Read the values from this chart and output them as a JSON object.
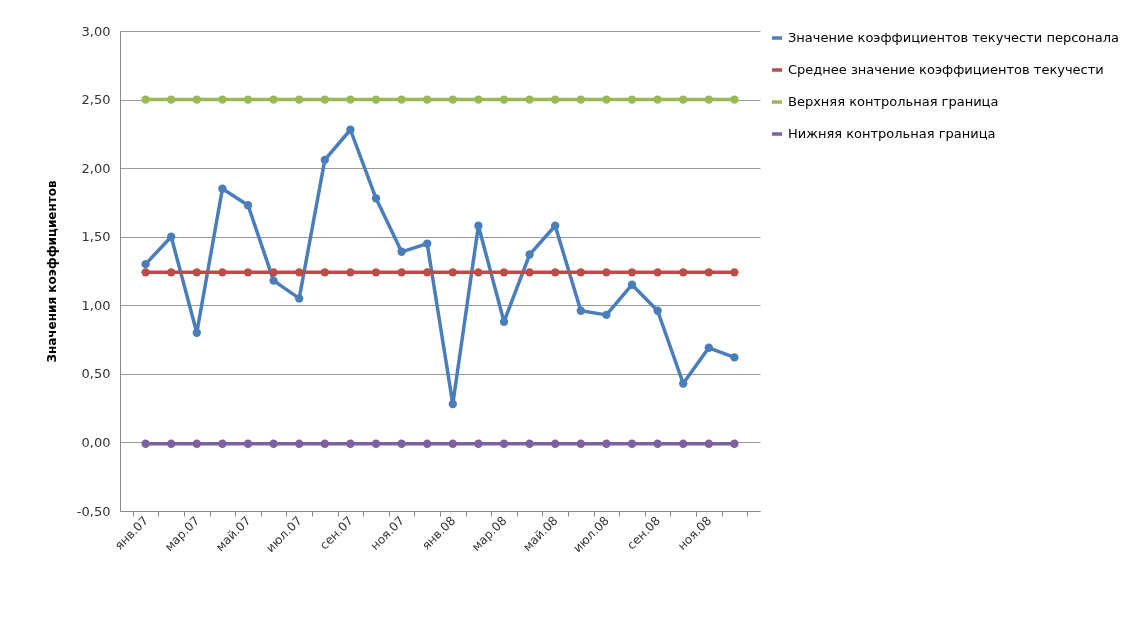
{
  "chart_data": {
    "type": "line",
    "ylabel": "Значения коэффициентов",
    "categories": [
      "янв.07",
      null,
      "мар.07",
      null,
      "май.07",
      null,
      "июл.07",
      null,
      "сен.07",
      null,
      "ноя.07",
      null,
      "янв.08",
      null,
      "мар.08",
      null,
      "май.08",
      null,
      "июл.08",
      null,
      "сен.08",
      null,
      "ноя.08",
      null
    ],
    "series": [
      {
        "name": "Значение коэффициентов текучести персонала",
        "color": "#4a7ebb",
        "values": [
          1.3,
          1.5,
          0.8,
          1.85,
          1.73,
          1.18,
          1.05,
          2.06,
          2.28,
          1.78,
          1.39,
          1.45,
          0.28,
          1.58,
          0.88,
          1.37,
          1.58,
          0.96,
          0.93,
          1.15,
          0.96,
          0.43,
          0.69,
          0.62
        ]
      },
      {
        "name": "Среднее значение коэффициентов текучести",
        "color": "#be4b48",
        "values": [
          1.24,
          1.24,
          1.24,
          1.24,
          1.24,
          1.24,
          1.24,
          1.24,
          1.24,
          1.24,
          1.24,
          1.24,
          1.24,
          1.24,
          1.24,
          1.24,
          1.24,
          1.24,
          1.24,
          1.24,
          1.24,
          1.24,
          1.24,
          1.24
        ]
      },
      {
        "name": "Верхняя контрольная граница",
        "color": "#98b954",
        "values": [
          2.5,
          2.5,
          2.5,
          2.5,
          2.5,
          2.5,
          2.5,
          2.5,
          2.5,
          2.5,
          2.5,
          2.5,
          2.5,
          2.5,
          2.5,
          2.5,
          2.5,
          2.5,
          2.5,
          2.5,
          2.5,
          2.5,
          2.5,
          2.5
        ]
      },
      {
        "name": "Нижняя контрольная граница",
        "color": "#7d60a0",
        "values": [
          -0.01,
          -0.01,
          -0.01,
          -0.01,
          -0.01,
          -0.01,
          -0.01,
          -0.01,
          -0.01,
          -0.01,
          -0.01,
          -0.01,
          -0.01,
          -0.01,
          -0.01,
          -0.01,
          -0.01,
          -0.01,
          -0.01,
          -0.01,
          -0.01,
          -0.01,
          -0.01,
          -0.01
        ]
      }
    ],
    "ylim": [
      -0.5,
      3
    ],
    "yticks": [
      {
        "value": -0.5,
        "label": "-0,50"
      },
      {
        "value": 0,
        "label": "0,00"
      },
      {
        "value": 0.5,
        "label": "0,50"
      },
      {
        "value": 1,
        "label": "1,00"
      },
      {
        "value": 1.5,
        "label": "1,50"
      },
      {
        "value": 2,
        "label": "2,00"
      },
      {
        "value": 2.5,
        "label": "2,50"
      },
      {
        "value": 3,
        "label": "3,00"
      }
    ],
    "grid": "y",
    "legend": "right",
    "marker": "circle",
    "line_style": "solid"
  }
}
